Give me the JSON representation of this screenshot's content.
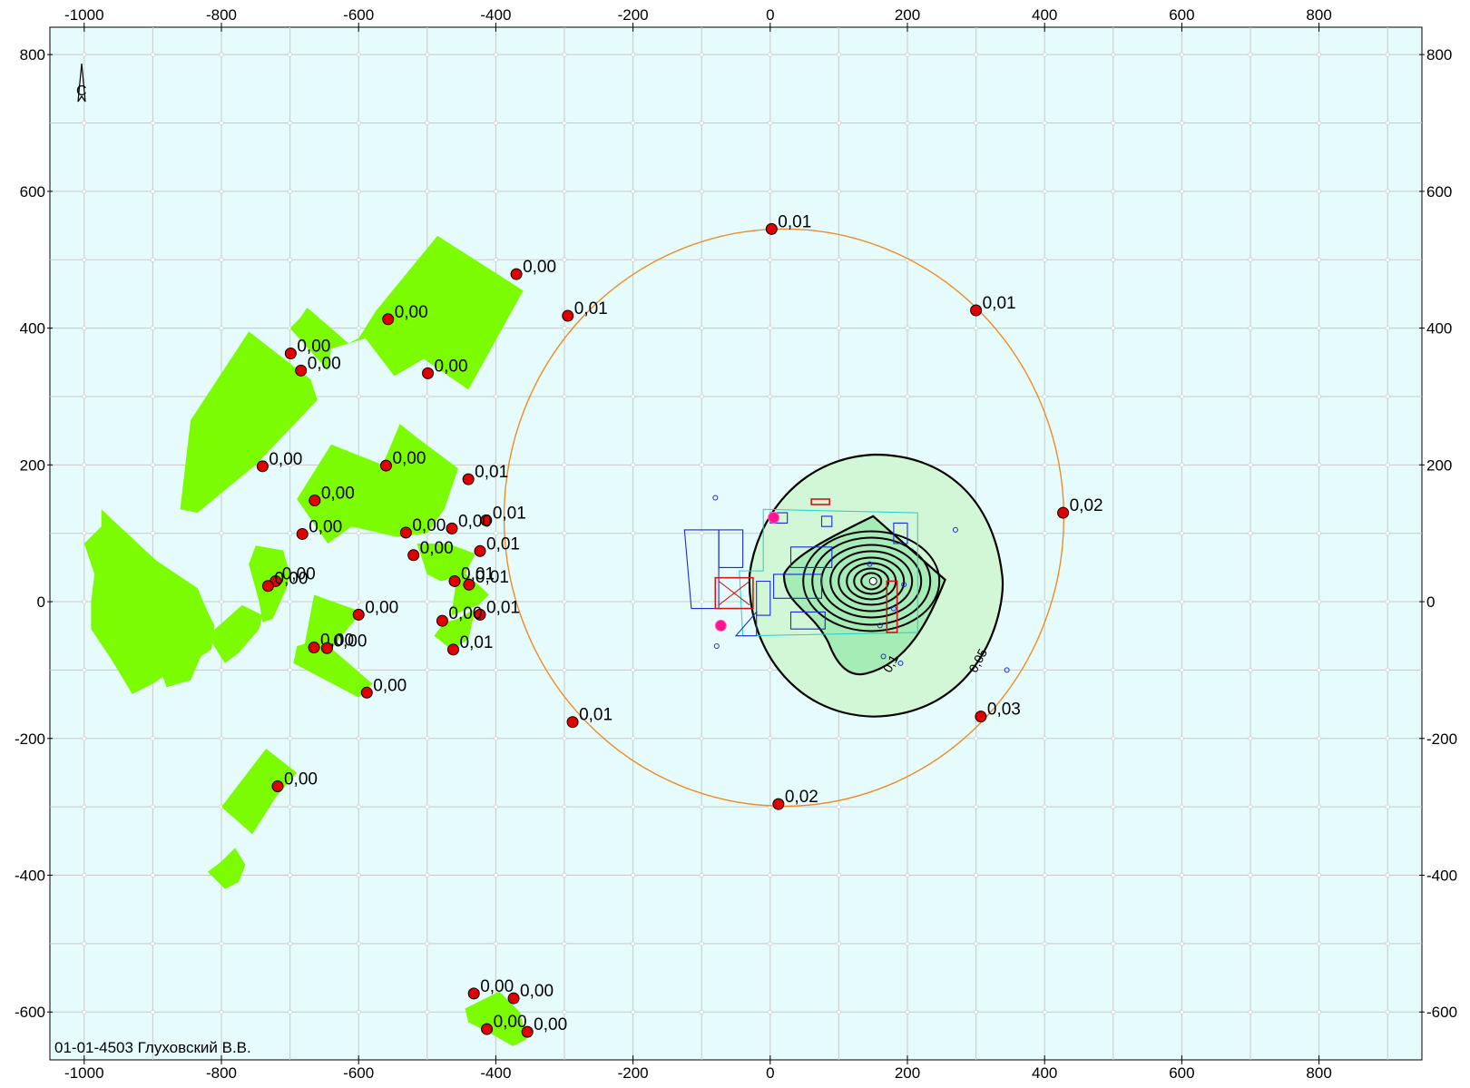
{
  "map": {
    "caption": "01-01-4503 Глуховский В.В.",
    "north_label": "С",
    "colors": {
      "background": "#e6fcfc",
      "grid": "#c8c8c8",
      "zone": "#7cfc00",
      "circle": "#f08a24",
      "plume_fill": "#d2f7d6",
      "iso_line": "#000000",
      "point": "#e00000",
      "site_line": "#1e2ad6",
      "site_outline": "#20d0d0",
      "source": "#ff1493",
      "source_red": "#d01818"
    },
    "x_ticks": [
      -1000,
      -800,
      -600,
      -400,
      -200,
      0,
      200,
      400,
      600,
      800
    ],
    "y_ticks": [
      800,
      600,
      400,
      200,
      0,
      -200,
      -400,
      -600
    ],
    "x_range": [
      -1050,
      950
    ],
    "y_range": [
      -670,
      840
    ],
    "isolines": [
      {
        "label": "0,1"
      },
      {
        "label": "0,05"
      }
    ],
    "points": [
      {
        "x": 2,
        "y": 545,
        "label": "0,01"
      },
      {
        "x": -295,
        "y": 418,
        "label": "0,01"
      },
      {
        "x": 300,
        "y": 426,
        "label": "0,01"
      },
      {
        "x": 427,
        "y": 130,
        "label": "0,02"
      },
      {
        "x": 307,
        "y": -168,
        "label": "0,03"
      },
      {
        "x": 12,
        "y": -296,
        "label": "0,02"
      },
      {
        "x": -288,
        "y": -176,
        "label": "0,01"
      },
      {
        "x": -370,
        "y": 479,
        "label": "0,00"
      },
      {
        "x": -557,
        "y": 413,
        "label": "0,00"
      },
      {
        "x": -699,
        "y": 363,
        "label": "0,00"
      },
      {
        "x": -684,
        "y": 338,
        "label": "0,00"
      },
      {
        "x": -499,
        "y": 334,
        "label": "0,00"
      },
      {
        "x": -740,
        "y": 198,
        "label": "0,00"
      },
      {
        "x": -560,
        "y": 199,
        "label": "0,00"
      },
      {
        "x": -440,
        "y": 179,
        "label": "0,01"
      },
      {
        "x": -664,
        "y": 148,
        "label": "0,00"
      },
      {
        "x": -414,
        "y": 119,
        "label": "0,01"
      },
      {
        "x": -531,
        "y": 101,
        "label": "0,00"
      },
      {
        "x": -464,
        "y": 107,
        "label": "0,00"
      },
      {
        "x": -682,
        "y": 99,
        "label": "0,00"
      },
      {
        "x": -423,
        "y": 74,
        "label": "0,01"
      },
      {
        "x": -520,
        "y": 68,
        "label": "0,00"
      },
      {
        "x": -460,
        "y": 30,
        "label": "0,01"
      },
      {
        "x": -439,
        "y": 25,
        "label": "0,01"
      },
      {
        "x": -721,
        "y": 30,
        "label": "0,00"
      },
      {
        "x": -732,
        "y": 23,
        "label": "0,00"
      },
      {
        "x": -600,
        "y": -19,
        "label": "0,00"
      },
      {
        "x": -423,
        "y": -19,
        "label": "0,01"
      },
      {
        "x": -478,
        "y": -28,
        "label": "0,00"
      },
      {
        "x": -462,
        "y": -70,
        "label": "0,01"
      },
      {
        "x": -665,
        "y": -67,
        "label": "0,00"
      },
      {
        "x": -646,
        "y": -68,
        "label": "0,00"
      },
      {
        "x": -588,
        "y": -133,
        "label": "0,00"
      },
      {
        "x": -718,
        "y": -270,
        "label": "0,00"
      },
      {
        "x": -432,
        "y": -573,
        "label": "0,00"
      },
      {
        "x": -374,
        "y": -580,
        "label": "0,00"
      },
      {
        "x": -413,
        "y": -625,
        "label": "0,00"
      },
      {
        "x": -354,
        "y": -629,
        "label": "0,00"
      }
    ]
  }
}
